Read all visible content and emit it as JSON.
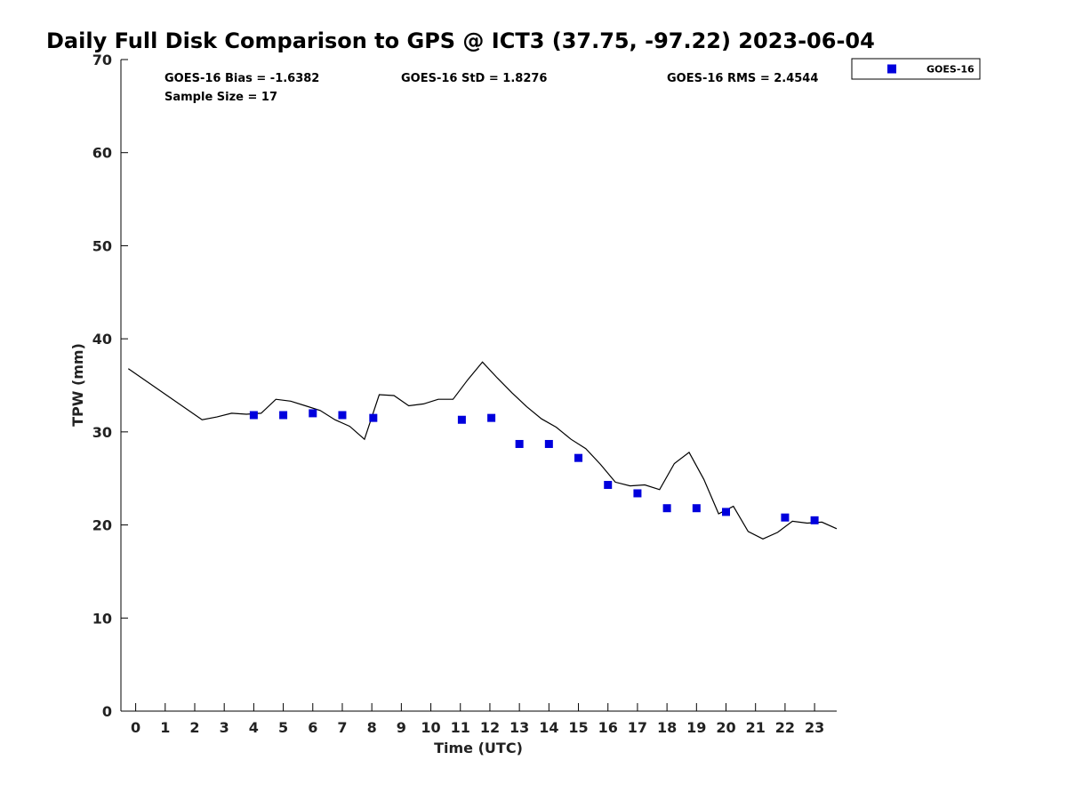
{
  "chart_data": {
    "type": "scatter",
    "title": "Daily Full Disk Comparison to GPS @ ICT3 (37.75, -97.22) 2023-06-04",
    "xlabel": "Time (UTC)",
    "ylabel": "TPW (mm)",
    "xlim": [
      -0.5,
      23.75
    ],
    "ylim": [
      0,
      70
    ],
    "xticks": [
      "0",
      "1",
      "2",
      "3",
      "4",
      "5",
      "6",
      "7",
      "8",
      "9",
      "10",
      "11",
      "12",
      "13",
      "14",
      "15",
      "16",
      "17",
      "18",
      "19",
      "20",
      "21",
      "22",
      "23"
    ],
    "yticks": [
      "0",
      "10",
      "20",
      "30",
      "40",
      "50",
      "60",
      "70"
    ],
    "grid": false,
    "legend_position": "top-right",
    "stats": {
      "bias": "GOES-16 Bias = -1.6382",
      "std": "GOES-16 StD = 1.8276",
      "rms": "GOES-16 RMS = 2.4544",
      "sample_size": "Sample Size = 17"
    },
    "series": [
      {
        "name": "GOES-16",
        "marker": "square",
        "color": "#0000dd",
        "points": [
          [
            4.0,
            31.8
          ],
          [
            5.0,
            31.8
          ],
          [
            6.0,
            32.0
          ],
          [
            7.0,
            31.8
          ],
          [
            8.05,
            31.5
          ],
          [
            11.05,
            31.3
          ],
          [
            12.05,
            31.5
          ],
          [
            13.0,
            28.7
          ],
          [
            14.0,
            28.7
          ],
          [
            15.0,
            27.2
          ],
          [
            16.0,
            24.3
          ],
          [
            17.0,
            23.4
          ],
          [
            18.0,
            21.8
          ],
          [
            19.0,
            21.8
          ],
          [
            20.0,
            21.4
          ],
          [
            22.0,
            20.8
          ],
          [
            23.0,
            20.5
          ]
        ]
      },
      {
        "marker": "line",
        "color": "#000000",
        "points": [
          [
            -0.25,
            36.8
          ],
          [
            2.25,
            31.3
          ],
          [
            2.75,
            31.6
          ],
          [
            3.25,
            32.0
          ],
          [
            3.75,
            31.9
          ],
          [
            4.25,
            32.0
          ],
          [
            4.75,
            33.5
          ],
          [
            5.25,
            33.3
          ],
          [
            5.75,
            32.8
          ],
          [
            6.25,
            32.3
          ],
          [
            6.75,
            31.3
          ],
          [
            7.25,
            30.6
          ],
          [
            7.75,
            29.2
          ],
          [
            8.25,
            34.0
          ],
          [
            8.75,
            33.9
          ],
          [
            9.25,
            32.8
          ],
          [
            9.75,
            33.0
          ],
          [
            10.25,
            33.5
          ],
          [
            10.75,
            33.5
          ],
          [
            11.25,
            35.6
          ],
          [
            11.75,
            37.5
          ],
          [
            12.25,
            35.8
          ],
          [
            12.75,
            34.2
          ],
          [
            13.25,
            32.7
          ],
          [
            13.75,
            31.4
          ],
          [
            14.25,
            30.5
          ],
          [
            14.75,
            29.2
          ],
          [
            15.25,
            28.2
          ],
          [
            15.75,
            26.5
          ],
          [
            16.25,
            24.6
          ],
          [
            16.75,
            24.2
          ],
          [
            17.25,
            24.3
          ],
          [
            17.75,
            23.8
          ],
          [
            18.25,
            26.6
          ],
          [
            18.75,
            27.8
          ],
          [
            19.25,
            24.9
          ],
          [
            19.75,
            21.2
          ],
          [
            20.25,
            22.0
          ],
          [
            20.75,
            19.3
          ],
          [
            21.25,
            18.5
          ],
          [
            21.75,
            19.2
          ],
          [
            22.25,
            20.4
          ],
          [
            22.75,
            20.2
          ],
          [
            23.25,
            20.3
          ],
          [
            23.75,
            19.6
          ]
        ]
      }
    ]
  }
}
